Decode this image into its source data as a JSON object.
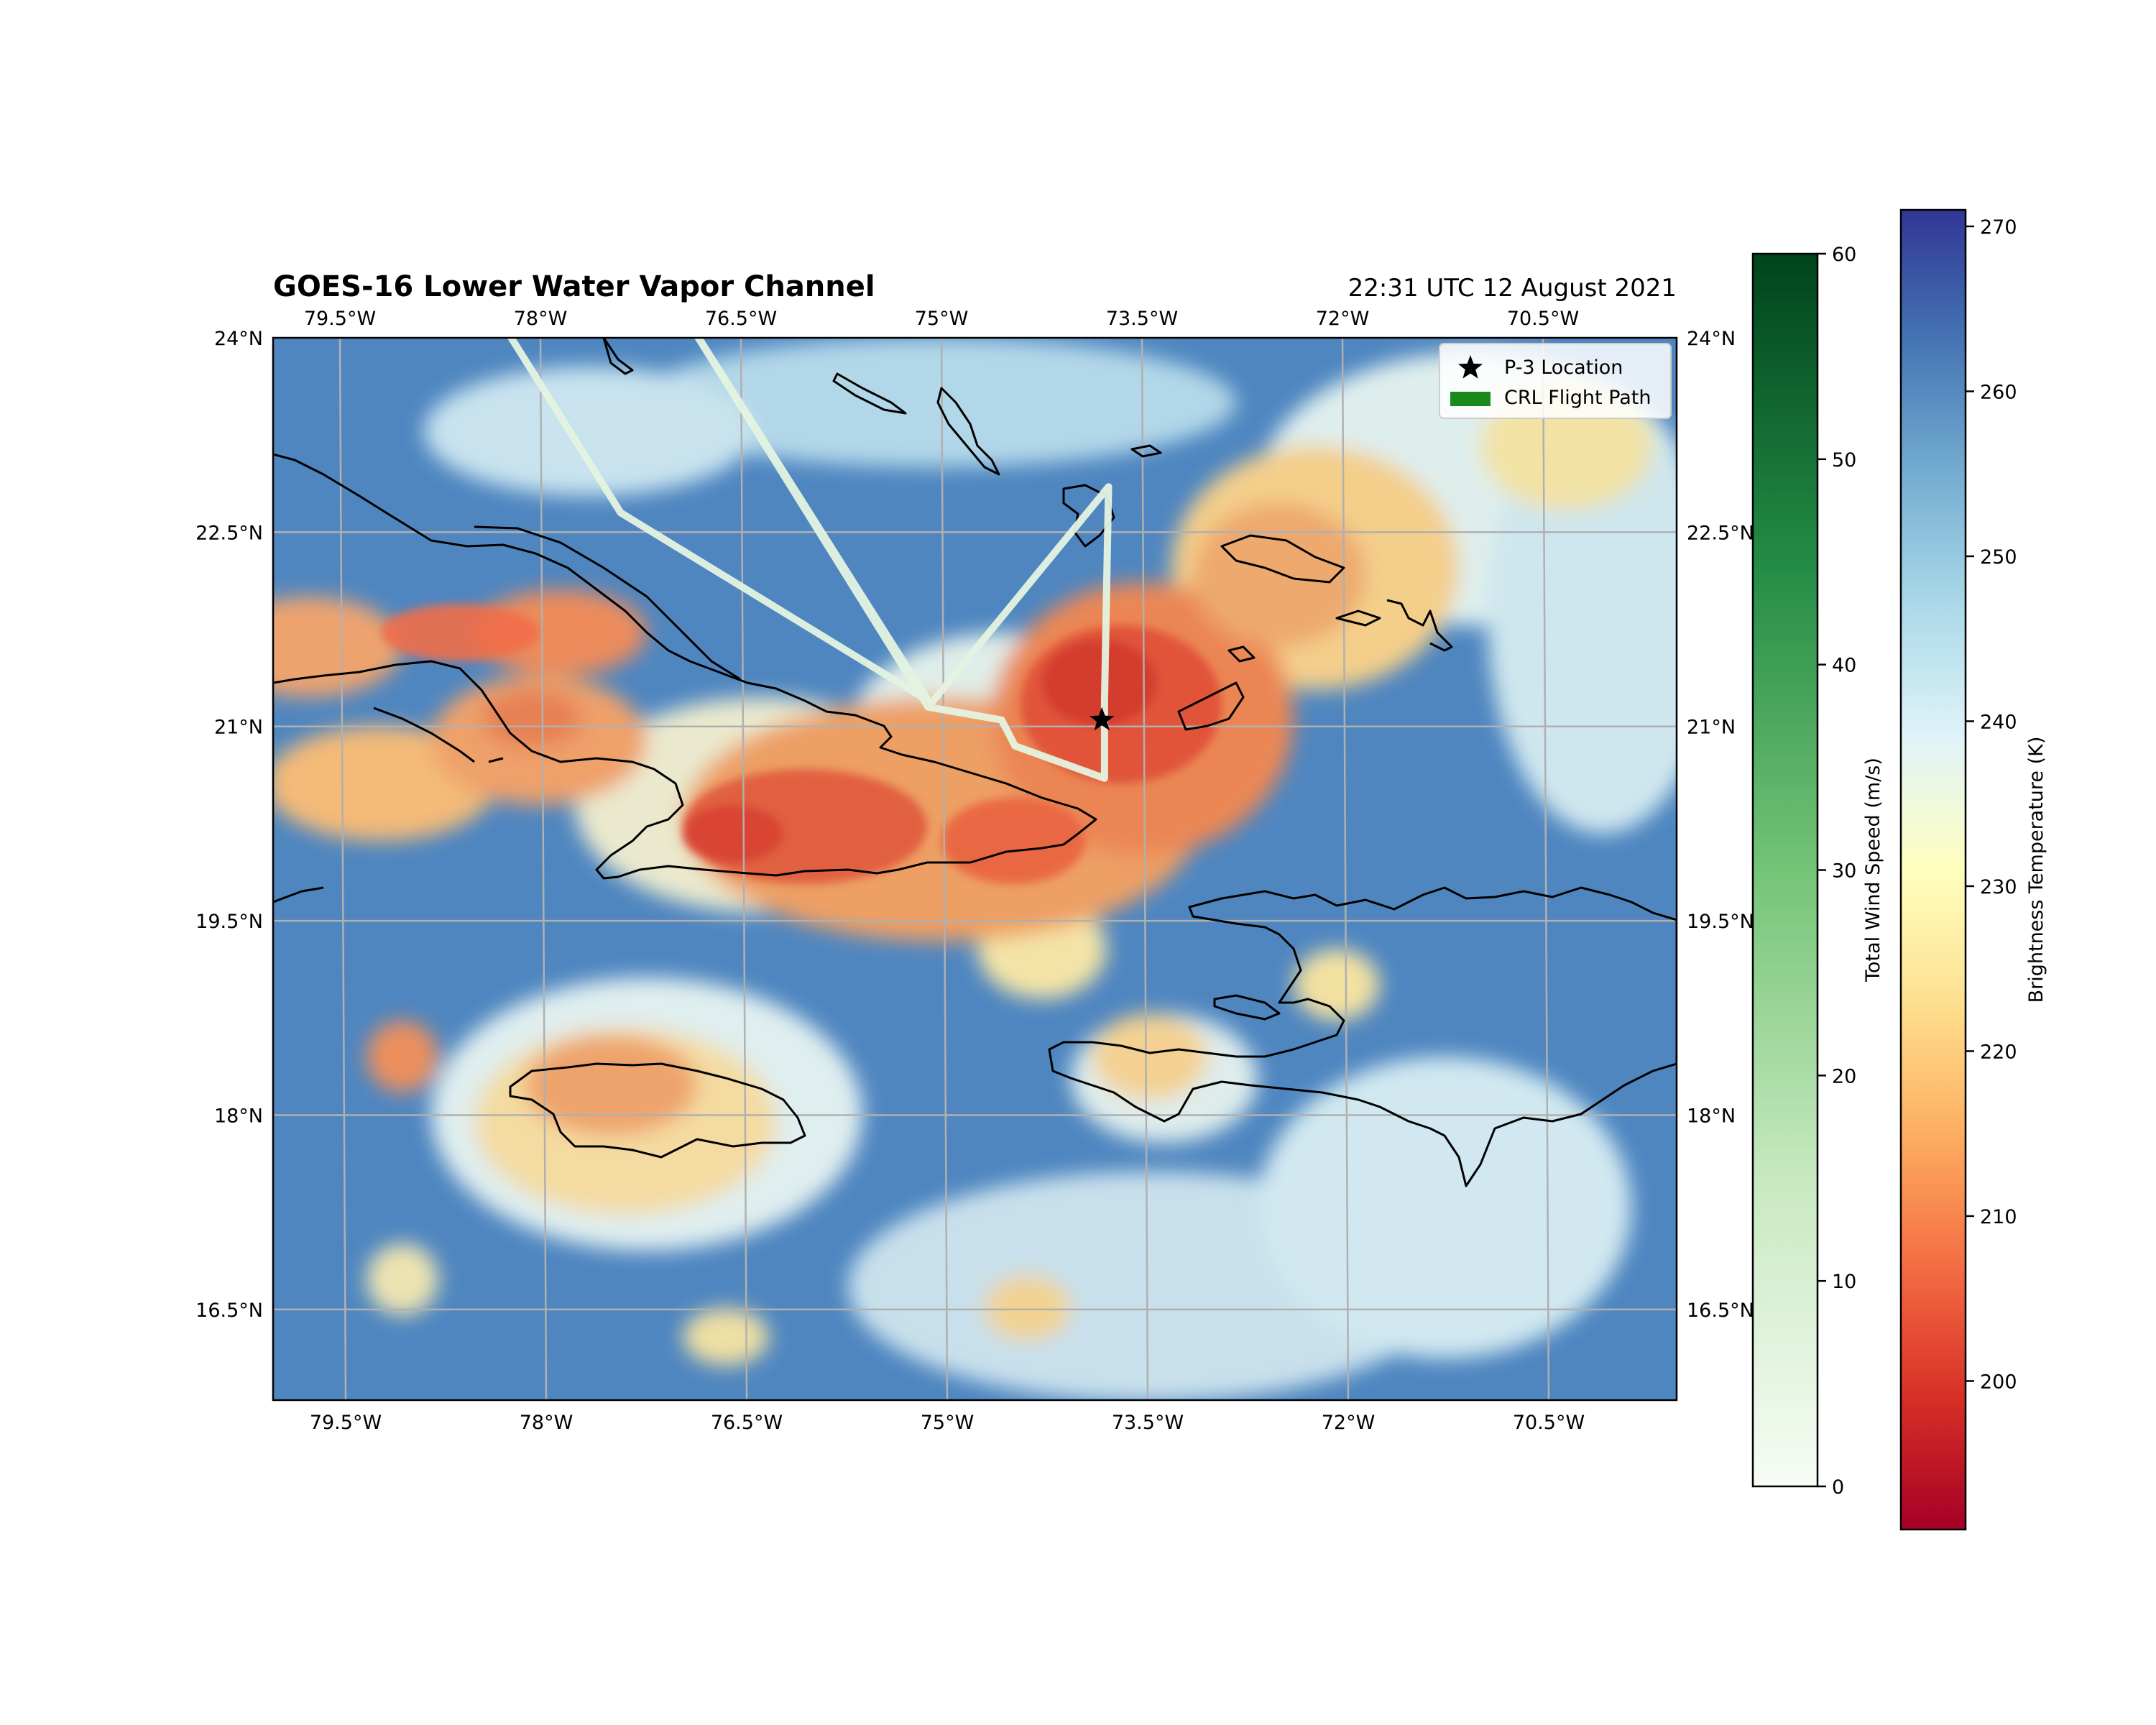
{
  "title": "GOES-16 Lower Water Vapor Channel",
  "timestamp": "22:31 UTC 12 August 2021",
  "map": {
    "lon_range": [
      -80.0,
      -69.5
    ],
    "lat_range": [
      15.8,
      24.0
    ],
    "lon_ticks": [
      {
        "value": -79.5,
        "label": "79.5°W"
      },
      {
        "value": -78.0,
        "label": "78°W"
      },
      {
        "value": -76.5,
        "label": "76.5°W"
      },
      {
        "value": -75.0,
        "label": "75°W"
      },
      {
        "value": -73.5,
        "label": "73.5°W"
      },
      {
        "value": -72.0,
        "label": "72°W"
      },
      {
        "value": -70.5,
        "label": "70.5°W"
      }
    ],
    "lat_ticks": [
      {
        "value": 24.0,
        "label": "24°N"
      },
      {
        "value": 22.5,
        "label": "22.5°N"
      },
      {
        "value": 21.0,
        "label": "21°N"
      },
      {
        "value": 19.5,
        "label": "19.5°N"
      },
      {
        "value": 18.0,
        "label": "18°N"
      },
      {
        "value": 16.5,
        "label": "16.5°N"
      }
    ],
    "gridlines": true,
    "background_color": "#4f86c0"
  },
  "legend": {
    "placement": "top-right",
    "entries": [
      {
        "marker": "star",
        "color": "#000000",
        "label": "P-3 Location"
      },
      {
        "marker": "patch",
        "color": "#1a8a1a",
        "label": "CRL Flight Path"
      }
    ]
  },
  "p3_location": {
    "lon": -73.8,
    "lat": 21.05
  },
  "flight_path": [
    {
      "lon": -78.4,
      "lat": 24.3
    },
    {
      "lon": -77.4,
      "lat": 22.65
    },
    {
      "lon": -75.1,
      "lat": 21.2
    },
    {
      "lon": -77.0,
      "lat": 24.3
    },
    {
      "lon": -75.1,
      "lat": 21.15
    },
    {
      "lon": -73.75,
      "lat": 22.85
    },
    {
      "lon": -73.78,
      "lat": 21.2
    },
    {
      "lon": -73.78,
      "lat": 20.6
    },
    {
      "lon": -74.45,
      "lat": 20.85
    },
    {
      "lon": -74.55,
      "lat": 21.05
    },
    {
      "lon": -75.1,
      "lat": 21.15
    }
  ],
  "colorbars": [
    {
      "label": "Total Wind Speed (m/s)",
      "cmap": "Greens",
      "colors": [
        "#f7fcf5",
        "#c7e9c0",
        "#74c476",
        "#238b45",
        "#00441b"
      ],
      "range": [
        0,
        60
      ],
      "ticks": [
        "0",
        "10",
        "20",
        "30",
        "40",
        "50",
        "60"
      ]
    },
    {
      "label": "Brightness Temperature (K)",
      "cmap": "RdYlBu",
      "colors": [
        "#a50026",
        "#d73027",
        "#f46d43",
        "#fdae61",
        "#fee090",
        "#ffffbf",
        "#e0f3f8",
        "#abd9e9",
        "#74add1",
        "#4575b4",
        "#313695"
      ],
      "range": [
        191,
        271
      ],
      "ticks": [
        "200",
        "210",
        "220",
        "230",
        "240",
        "250",
        "260",
        "270"
      ]
    }
  ]
}
